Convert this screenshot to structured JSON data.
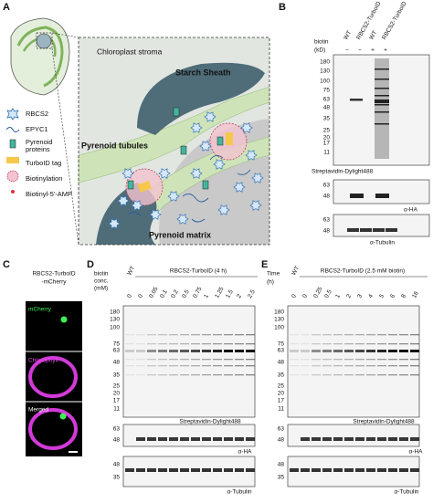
{
  "panel_a": {
    "label": "A",
    "stroma": "Chloroplast stroma",
    "starch": "Starch Sheath",
    "tubules": "Pyrenoid tubules",
    "matrix": "Pyrenoid matrix",
    "legend": [
      "RBCS2",
      "EPYC1",
      "Pyrenoid proteins",
      "TurboID tag",
      "Biotinylation",
      "Biotinyl-5'-AMP"
    ]
  },
  "panel_b": {
    "label": "B",
    "lanes": [
      "WT",
      "RBCS2-TurboID",
      "WT",
      "RBCS2-TurboID"
    ],
    "biotin_label": "biotin",
    "biotin": [
      "−",
      "−",
      "+",
      "+"
    ],
    "unit": "(kD)",
    "markers": [
      180,
      130,
      100,
      75,
      63,
      48,
      35,
      25,
      20,
      17,
      11
    ],
    "blot1": "Streptavidin-Dylight488",
    "ha_markers": [
      63,
      48
    ],
    "ha": "α-HA",
    "tub_markers": [
      63,
      48
    ],
    "tub": "α-Tubulin"
  },
  "panel_c": {
    "label": "C",
    "title": [
      "RBCS2-TurboID",
      "-mCherry"
    ],
    "channels": [
      "mCherry",
      "Chlorophyll",
      "Merged"
    ]
  },
  "panel_d": {
    "label": "D",
    "condition_label": [
      "biotin",
      "conc.",
      "(mM)"
    ],
    "wt": "WT",
    "group": "RBCS2-TurboID (4 h)",
    "lanes": [
      0,
      0,
      0.05,
      0.1,
      0.2,
      0.5,
      0.75,
      1,
      1.25,
      1.5,
      2,
      2.5
    ],
    "markers": [
      180,
      130,
      100,
      75,
      63,
      48,
      35,
      25,
      20,
      17,
      11
    ],
    "blot1": "Streptavidin-Dylight488",
    "ha_markers": [
      63,
      48
    ],
    "ha": "α-HA",
    "tub_markers": [
      48,
      35
    ],
    "tub": "α-Tubulin"
  },
  "panel_e": {
    "label": "E",
    "condition_label": [
      "Time",
      "(h)"
    ],
    "wt": "WT",
    "group": "RBCS2-TurboID (2.5 mM biotin)",
    "lanes": [
      0,
      0,
      0.25,
      0.5,
      1,
      2,
      3,
      4,
      5,
      6,
      8,
      16
    ],
    "markers": [
      180,
      130,
      100,
      75,
      63,
      48,
      35,
      25,
      20,
      17,
      11
    ],
    "blot1": "Streptavidin-Dylight488",
    "ha_markers": [
      63,
      48
    ],
    "ha": "α-HA",
    "tub_markers": [
      48,
      35
    ],
    "tub": "α-Tubulin"
  }
}
